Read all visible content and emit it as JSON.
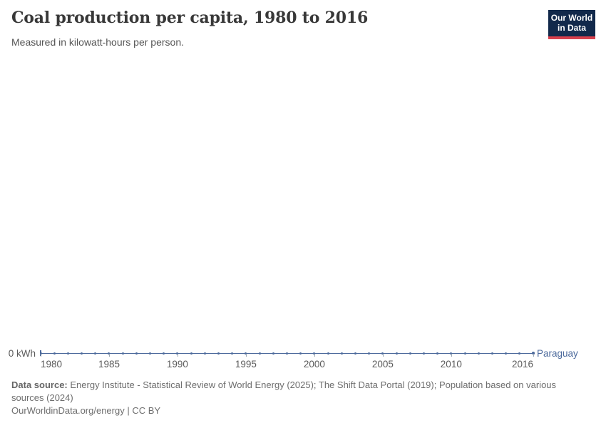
{
  "header": {
    "logo": {
      "line1": "Our World",
      "line2": "in Data"
    }
  },
  "chart_data": {
    "type": "line",
    "title": "Coal production per capita, 1980 to 2016",
    "subtitle": "Measured in kilowatt-hours per person.",
    "xlabel": "",
    "ylabel": "kilowatt-hours per person",
    "y_tick_label": "0 kWh",
    "xlim": [
      1980,
      2016
    ],
    "ylim": [
      0,
      0
    ],
    "grid": false,
    "legend_position": "end-of-line",
    "x_ticks": [
      1980,
      1985,
      1990,
      1995,
      2000,
      2005,
      2010,
      2016
    ],
    "x": [
      1980,
      1981,
      1982,
      1983,
      1984,
      1985,
      1986,
      1987,
      1988,
      1989,
      1990,
      1991,
      1992,
      1993,
      1994,
      1995,
      1996,
      1997,
      1998,
      1999,
      2000,
      2001,
      2002,
      2003,
      2004,
      2005,
      2006,
      2007,
      2008,
      2009,
      2010,
      2011,
      2012,
      2013,
      2014,
      2015,
      2016
    ],
    "series": [
      {
        "name": "Paraguay",
        "color": "#4C6A9C",
        "values": [
          0,
          0,
          0,
          0,
          0,
          0,
          0,
          0,
          0,
          0,
          0,
          0,
          0,
          0,
          0,
          0,
          0,
          0,
          0,
          0,
          0,
          0,
          0,
          0,
          0,
          0,
          0,
          0,
          0,
          0,
          0,
          0,
          0,
          0,
          0,
          0,
          0
        ]
      }
    ]
  },
  "footer": {
    "source_label": "Data source:",
    "sources": "Energy Institute - Statistical Review of World Energy (2025); The Shift Data Portal (2019); Population based on various sources (2024)",
    "link": "OurWorldinData.org/energy",
    "separator": " | ",
    "license": "CC BY"
  }
}
